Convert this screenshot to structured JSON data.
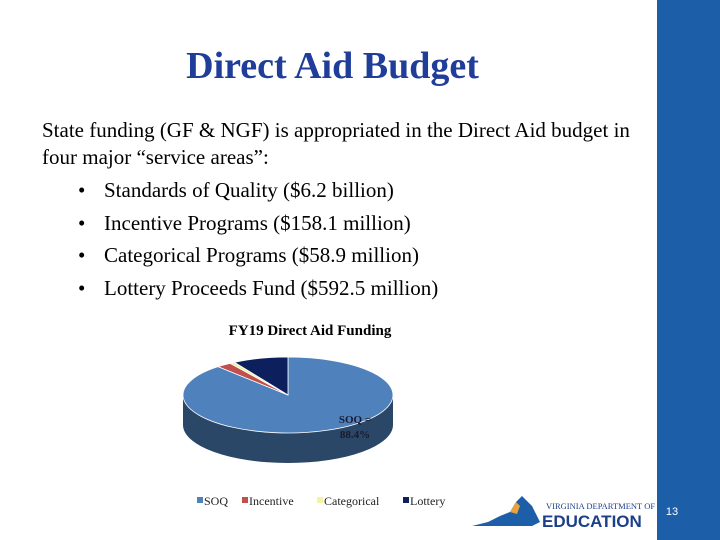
{
  "slide": {
    "title": "Direct Aid Budget",
    "intro": "State funding (GF & NGF) is appropriated in the Direct Aid budget in four major “service areas”:",
    "bullets": [
      "Standards of Quality ($6.2 billion)",
      "Incentive Programs ($158.1 million)",
      "Categorical Programs ($58.9 million)",
      "Lottery Proceeds Fund ($592.5 million)"
    ],
    "bullet_glyph": "•",
    "page_number": "13"
  },
  "logo": {
    "line1": "VIRGINIA DEPARTMENT OF",
    "line2": "EDUCATION"
  },
  "colors": {
    "title": "#1f3d99",
    "side_bar": "#1d5ea8"
  },
  "chart_data": {
    "type": "pie",
    "title": "FY19 Direct Aid Funding",
    "categories": [
      "SOQ",
      "Incentive",
      "Categorical",
      "Lottery"
    ],
    "values": [
      88.4,
      2.3,
      0.8,
      8.5
    ],
    "units": "%",
    "colors": [
      "#4f81bd",
      "#c0504d",
      "#f3f3a0",
      "#0d1f5c"
    ],
    "data_label": "SOQ = 88.4%",
    "legend_position": "bottom",
    "style": "3d"
  }
}
